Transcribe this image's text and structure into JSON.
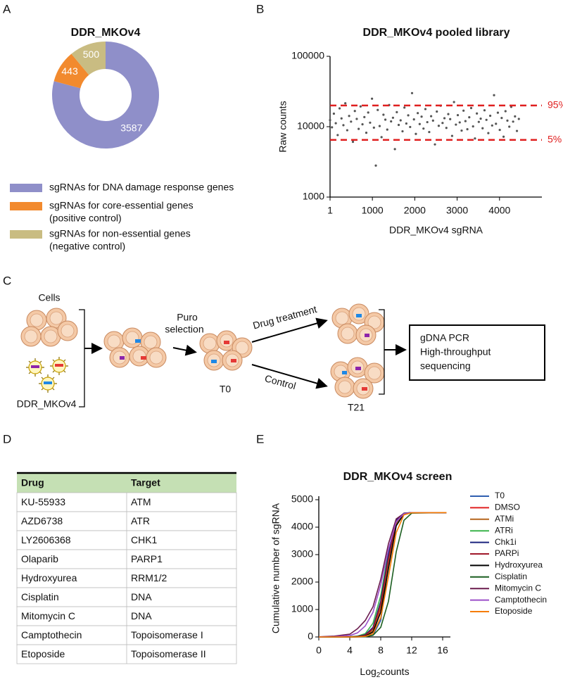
{
  "panel_labels": [
    "A",
    "B",
    "C",
    "D",
    "E"
  ],
  "chart_data": [
    {
      "type": "pie",
      "title": "DDR_MKOv4",
      "donut": true,
      "categories": [
        [
          "sgRNAs for DNA damage response genes"
        ],
        [
          "sgRNAs for core-essential genes",
          "(positive control)"
        ],
        [
          "sgRNAs for non-essential genes",
          "(negative control)"
        ]
      ],
      "values": [
        3587,
        443,
        500
      ],
      "colors": [
        "#8f8fc9",
        "#f28a2e",
        "#c9bc82"
      ]
    },
    {
      "type": "scatter",
      "title": "DDR_MKOv4 pooled library",
      "x_label": "DDR_MKOv4 sgRNA",
      "y_label": "Raw counts",
      "y_scale": "log",
      "color": "#555555",
      "xlim": [
        1,
        5000
      ],
      "xticks": [
        1,
        1000,
        2000,
        3000,
        4000
      ],
      "ylim": [
        1000,
        100000
      ],
      "yticks": [
        1000,
        10000,
        100000
      ],
      "reference_color": "#e02020",
      "reference_lines": [
        {
          "value": 20000,
          "label": "95%"
        },
        {
          "value": 6500,
          "label": "5%"
        }
      ],
      "x": [
        1,
        46,
        91,
        136,
        181,
        226,
        271,
        316,
        361,
        406,
        451,
        496,
        541,
        586,
        631,
        676,
        721,
        766,
        811,
        856,
        901,
        946,
        991,
        1036,
        1081,
        1126,
        1171,
        1216,
        1261,
        1306,
        1351,
        1396,
        1441,
        1486,
        1531,
        1576,
        1621,
        1666,
        1711,
        1756,
        1801,
        1846,
        1891,
        1936,
        1981,
        2026,
        2071,
        2116,
        2161,
        2206,
        2251,
        2296,
        2341,
        2386,
        2431,
        2476,
        2521,
        2566,
        2611,
        2656,
        2701,
        2746,
        2791,
        2836,
        2881,
        2926,
        2971,
        3016,
        3061,
        3106,
        3151,
        3196,
        3241,
        3286,
        3331,
        3376,
        3421,
        3466,
        3511,
        3556,
        3601,
        3646,
        3691,
        3736,
        3781,
        3826,
        3871,
        3916,
        3961,
        4006,
        4051,
        4096,
        4141,
        4186,
        4231,
        4276,
        4321,
        4366,
        4411,
        4456
      ],
      "y": [
        12400,
        9800,
        15300,
        11200,
        7600,
        18200,
        13100,
        10500,
        21500,
        8900,
        14200,
        11800,
        6100,
        16700,
        12900,
        9300,
        19400,
        10800,
        13700,
        8200,
        15900,
        11400,
        25000,
        9700,
        2800,
        17300,
        10200,
        7100,
        14800,
        12600,
        9100,
        20300,
        11900,
        13400,
        4800,
        16100,
        10600,
        12300,
        8600,
        18700,
        11100,
        14500,
        9900,
        30000,
        12700,
        7900,
        15600,
        10900,
        13900,
        9400,
        17800,
        11600,
        8400,
        14100,
        12200,
        5600,
        16400,
        10300,
        19900,
        11300,
        13200,
        9600,
        15100,
        12800,
        7400,
        22400,
        10700,
        14600,
        11500,
        8800,
        16900,
        12000,
        9200,
        13600,
        18400,
        10100,
        6800,
        15400,
        11700,
        13000,
        9500,
        17100,
        12500,
        8100,
        14300,
        10400,
        28000,
        11000,
        15800,
        9000,
        13300,
        7200,
        16600,
        12200,
        10000,
        19100,
        11800,
        14000,
        8700,
        12900
      ]
    },
    {
      "type": "line",
      "title": "DDR_MKOv4 screen",
      "x_label": {
        "text": "Log",
        "subscript": "2",
        "suffix": "counts"
      },
      "y_label": "Cumulative number of sgRNA",
      "xlim": [
        0,
        17
      ],
      "xticks": [
        0,
        4,
        8,
        12,
        16
      ],
      "ylim": [
        0,
        5000
      ],
      "yticks": [
        0,
        1000,
        2000,
        3000,
        4000,
        5000
      ],
      "legend": "right",
      "x": [
        0,
        2,
        4,
        5,
        6,
        7,
        8,
        9,
        10,
        11,
        12,
        16.5
      ],
      "series": [
        {
          "name": "T0",
          "color": "#2f5fb0",
          "values": [
            0,
            0,
            0,
            2,
            7,
            70,
            600,
            2600,
            4150,
            4500,
            4530,
            4530
          ]
        },
        {
          "name": "DMSO",
          "color": "#e02020",
          "values": [
            0,
            0,
            1,
            8,
            35,
            200,
            1050,
            2800,
            4200,
            4500,
            4530,
            4530
          ]
        },
        {
          "name": "ATMi",
          "color": "#b5651d",
          "values": [
            0,
            0,
            2,
            10,
            45,
            240,
            1100,
            2700,
            4100,
            4490,
            4530,
            4530
          ]
        },
        {
          "name": "ATRi",
          "color": "#3cb44b",
          "values": [
            0,
            1,
            8,
            30,
            120,
            500,
            1500,
            3100,
            4250,
            4510,
            4530,
            4530
          ]
        },
        {
          "name": "Chk1i",
          "color": "#1a237e",
          "values": [
            0,
            0,
            4,
            20,
            80,
            350,
            1300,
            3000,
            4250,
            4510,
            4530,
            4530
          ]
        },
        {
          "name": "PARPi",
          "color": "#a0182a",
          "values": [
            0,
            0,
            3,
            15,
            60,
            300,
            1200,
            2850,
            4200,
            4500,
            4530,
            4530
          ]
        },
        {
          "name": "Hydroxyurea",
          "color": "#000000",
          "values": [
            0,
            0,
            1,
            7,
            30,
            180,
            900,
            2500,
            4050,
            4480,
            4530,
            4530
          ]
        },
        {
          "name": "Cisplatin",
          "color": "#1b5e20",
          "values": [
            0,
            0,
            1,
            3,
            12,
            60,
            350,
            1300,
            3100,
            4250,
            4510,
            4530
          ]
        },
        {
          "name": "Mitomycin C",
          "color": "#6a1b4d",
          "values": [
            5,
            30,
            100,
            300,
            600,
            1100,
            2100,
            3400,
            4300,
            4500,
            4530,
            4530
          ]
        },
        {
          "name": "Camptothecin",
          "color": "#9c4fc9",
          "values": [
            2,
            10,
            50,
            150,
            400,
            900,
            1900,
            3200,
            4200,
            4490,
            4530,
            4530
          ]
        },
        {
          "name": "Etoposide",
          "color": "#f57c00",
          "values": [
            0,
            0,
            1,
            5,
            20,
            120,
            700,
            2200,
            3800,
            4450,
            4525,
            4530
          ]
        }
      ]
    }
  ],
  "diagram": {
    "cells": "Cells",
    "library": "DDR_MKOv4",
    "selection": [
      "Puro",
      "selection"
    ],
    "t0": "T0",
    "drug": "Drug treatment",
    "control": "Control",
    "t21": "T21",
    "box": [
      "gDNA PCR",
      "High-throughput",
      "sequencing"
    ]
  },
  "table": {
    "header": [
      "Drug",
      "Target"
    ],
    "rows": [
      [
        "KU-55933",
        "ATM"
      ],
      [
        "AZD6738",
        "ATR"
      ],
      [
        "LY2606368",
        "CHK1"
      ],
      [
        "Olaparib",
        "PARP1"
      ],
      [
        "Hydroxyurea",
        "RRM1/2"
      ],
      [
        "Cisplatin",
        "DNA"
      ],
      [
        "Mitomycin C",
        "DNA"
      ],
      [
        "Camptothecin",
        "Topoisomerase I"
      ],
      [
        "Etoposide",
        "Topoisomerase II"
      ]
    ]
  }
}
